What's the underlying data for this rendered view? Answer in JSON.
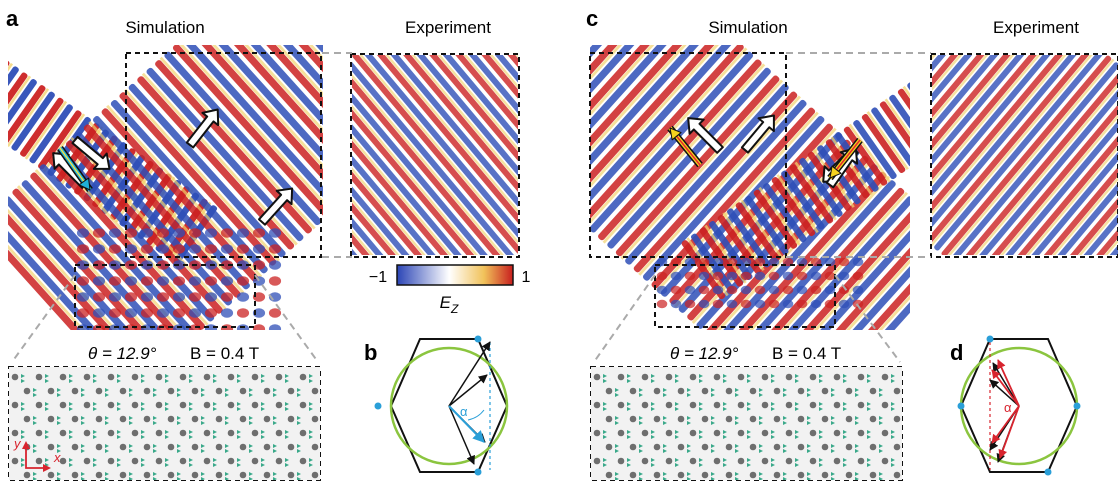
{
  "labels": {
    "panel_a": "a",
    "panel_b": "b",
    "panel_c": "c",
    "panel_d": "d",
    "simulation_left": "Simulation",
    "experiment_left": "Experiment",
    "simulation_right": "Simulation",
    "experiment_right": "Experiment",
    "theta_left": "θ = 12.9°",
    "b_left": "B = 0.4 T",
    "theta_right": "θ = 12.9°",
    "b_right": "B = 0.4 T",
    "axis_y": "y",
    "axis_x": "x",
    "alpha_b": "α",
    "alpha_d": "α"
  },
  "colorbar": {
    "min_label": "−1",
    "max_label": "1",
    "quantity": "E",
    "quantity_sub": "Z",
    "colors": [
      "#2b45b6",
      "#ffffff",
      "#f1c25a",
      "#c81e1e"
    ]
  },
  "colors": {
    "wave_blue": "#2f4fb8",
    "wave_red": "#cc2222",
    "wave_yellow": "#f3d26a",
    "hexagon": "#111111",
    "circle": "#8bc53f",
    "vertex_dot": "#2a9fd8",
    "alpha_arrow_b": "#2a9fd8",
    "alpha_arrow_d": "#d8242e",
    "lattice_dot": "#6e6e6e",
    "lattice_tri": "#3aa98a"
  },
  "icons": {
    "wave_arrow": "hollow-arrow-icon",
    "incident_arrow_a": "cyan-yellow-arrow-icon",
    "incident_arrow_c": "red-yellow-arrow-icon"
  }
}
